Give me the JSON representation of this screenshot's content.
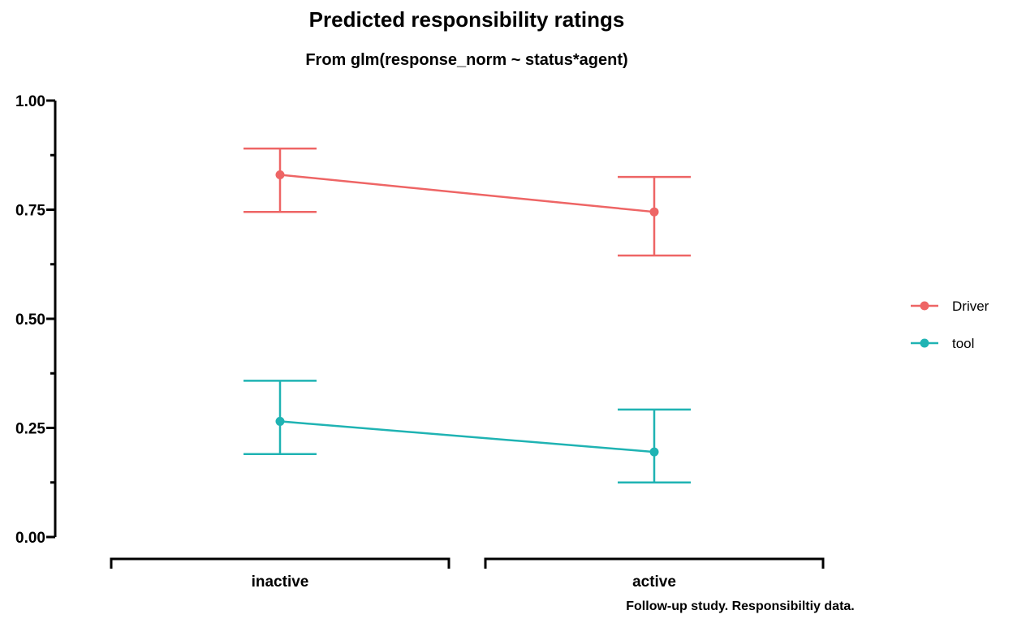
{
  "chart_data": {
    "type": "line",
    "title": "Predicted responsibility ratings",
    "subtitle": "From glm(response_norm ~ status*agent)",
    "caption": "Follow-up study. Responsibiltiy data.",
    "xlabel": "",
    "ylabel": "",
    "categories": [
      "inactive",
      "active"
    ],
    "ylim": [
      0,
      1
    ],
    "y_ticks": [
      0,
      0.25,
      0.5,
      0.75,
      1
    ],
    "y_tick_labels": [
      "0.00",
      "0.25",
      "0.50",
      "0.75",
      "1.00"
    ],
    "grid": false,
    "legend_position": "right",
    "series": [
      {
        "name": "Driver",
        "color": "#ee6565",
        "values": [
          0.83,
          0.745
        ],
        "lower": [
          0.745,
          0.645
        ],
        "upper": [
          0.89,
          0.825
        ]
      },
      {
        "name": "tool",
        "color": "#1fb3b3",
        "values": [
          0.265,
          0.195
        ],
        "lower": [
          0.19,
          0.125
        ],
        "upper": [
          0.358,
          0.292
        ]
      }
    ]
  }
}
